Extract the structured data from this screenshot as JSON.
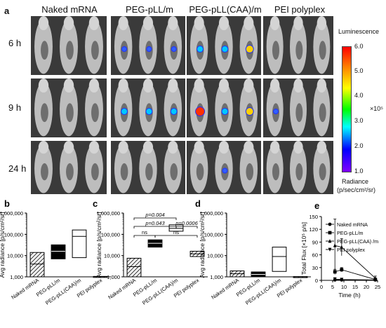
{
  "panel_a": {
    "letter": "a",
    "columns": [
      "Naked mRNA",
      "PEG-pLL/m",
      "PEG-pLL(CAA)/m",
      "PEI polyplex"
    ],
    "rows": [
      "6 h",
      "9 h",
      "24 h"
    ],
    "colorbar": {
      "title": "Luminescence",
      "ticks": [
        "6.0",
        "5.0",
        "4.0",
        "3.0",
        "2.0",
        "1.0"
      ],
      "multiplier": "×10⁵",
      "units_line1": "Radiance",
      "units_line2": "(p/sec/cm²/sr)"
    },
    "signals": [
      [
        [
          0,
          0,
          0
        ],
        [
          1,
          1,
          1
        ],
        [
          2,
          2,
          3
        ],
        [
          0,
          0,
          0
        ]
      ],
      [
        [
          0,
          0,
          0
        ],
        [
          2,
          2,
          2
        ],
        [
          4,
          2,
          3
        ],
        [
          1,
          0,
          0
        ]
      ],
      [
        [
          0,
          0,
          0
        ],
        [
          0,
          0,
          0
        ],
        [
          0,
          1,
          0
        ],
        [
          0,
          0,
          0
        ]
      ]
    ]
  },
  "chart_data": [
    {
      "panel": "b",
      "type": "bar",
      "ylabel": "Avg radiance [p/s/cm²/sr]",
      "yscale": "log",
      "ylim": [
        1000,
        1000000
      ],
      "yticks": [
        "1,000",
        "10,000",
        "100,000",
        "1,000,000"
      ],
      "categories": [
        "Naked mRNA",
        "PEG-pLL/m",
        "PEG-pLL(CAA)/m",
        "PEI polyplex"
      ],
      "boxes": [
        {
          "low": 1000,
          "high": 14000,
          "mid": 4000,
          "fill": "hatch"
        },
        {
          "low": 7000,
          "high": 32000,
          "mid": 16000,
          "fill": "solid"
        },
        {
          "low": 8000,
          "high": 160000,
          "mid": 80000,
          "fill": "open"
        },
        {
          "low": 1000,
          "high": 1050,
          "mid": 1020,
          "fill": "hatch"
        }
      ]
    },
    {
      "panel": "c",
      "type": "bar",
      "ylabel": "Avg radiance [p/s/cm²/sr]",
      "yscale": "log",
      "ylim": [
        1000,
        1000000
      ],
      "yticks": [
        "1,000",
        "10,000",
        "100,000",
        "1,000,000"
      ],
      "categories": [
        "Naked mRNA",
        "PEG-pLL/m",
        "PEG-pLL(CAA)/m",
        "PEI polyplex"
      ],
      "boxes": [
        {
          "low": 1000,
          "high": 7500,
          "mid": 3000,
          "fill": "hatch"
        },
        {
          "low": 25000,
          "high": 55000,
          "mid": 38000,
          "fill": "solid"
        },
        {
          "low": 140000,
          "high": 280000,
          "mid": 190000,
          "fill": "open"
        },
        {
          "low": 9000,
          "high": 16000,
          "mid": 12000,
          "fill": "hatch"
        }
      ],
      "annotations": [
        {
          "text": "p=0.004",
          "from": 0,
          "to": 2
        },
        {
          "text": "p=0.043",
          "from": 0,
          "to": 2
        },
        {
          "text": "p=0.0006",
          "from": 2,
          "to": 3
        },
        {
          "text": "ns",
          "from": 0,
          "to": 1
        },
        {
          "text": "ns",
          "from": 1,
          "to": 3
        }
      ]
    },
    {
      "panel": "d",
      "type": "bar",
      "ylabel": "Avg radiance [p/s/cm²/sr]",
      "yscale": "log",
      "ylim": [
        1000,
        1000000
      ],
      "yticks": [
        "1,000",
        "10,000",
        "100,000",
        "1,000,000"
      ],
      "categories": [
        "Naked mRNA",
        "PEG-pLL/m",
        "PEG-pLL(CAA)/m",
        "PEI polyplex"
      ],
      "boxes": [
        {
          "low": 1000,
          "high": 1900,
          "mid": 1400,
          "fill": "hatch"
        },
        {
          "low": 1000,
          "high": 1700,
          "mid": 1300,
          "fill": "solid"
        },
        {
          "low": 1800,
          "high": 25000,
          "mid": 9000,
          "fill": "open"
        },
        {
          "low": 1000,
          "high": 1030,
          "mid": 1010,
          "fill": "hatch"
        }
      ]
    },
    {
      "panel": "e",
      "type": "line",
      "xlabel": "Time (h)",
      "ylabel": "Total Flux [×10⁵ p/s]",
      "xlim": [
        0,
        25
      ],
      "ylim": [
        0,
        150
      ],
      "xticks": [
        0,
        5,
        10,
        15,
        20,
        25
      ],
      "yticks": [
        0,
        30,
        60,
        90,
        120,
        150
      ],
      "series": [
        {
          "name": "Naked mRNA",
          "marker": "circle",
          "x": [
            6,
            9,
            24
          ],
          "y": [
            1,
            1,
            1
          ],
          "err": [
            1,
            1,
            1
          ]
        },
        {
          "name": "PEG-pLL/m",
          "marker": "square",
          "x": [
            6,
            9,
            24
          ],
          "y": [
            20,
            25,
            2
          ],
          "err": [
            6,
            5,
            2
          ]
        },
        {
          "name": "PEG-pLL(CAA) /m",
          "marker": "triangle-up",
          "x": [
            6,
            9,
            24
          ],
          "y": [
            82,
            78,
            5
          ],
          "err": [
            62,
            20,
            5
          ]
        },
        {
          "name": "PEI polyplex",
          "marker": "triangle-down",
          "x": [
            6,
            9,
            24
          ],
          "y": [
            3,
            2,
            1
          ],
          "err": [
            2,
            2,
            1
          ]
        }
      ]
    }
  ]
}
